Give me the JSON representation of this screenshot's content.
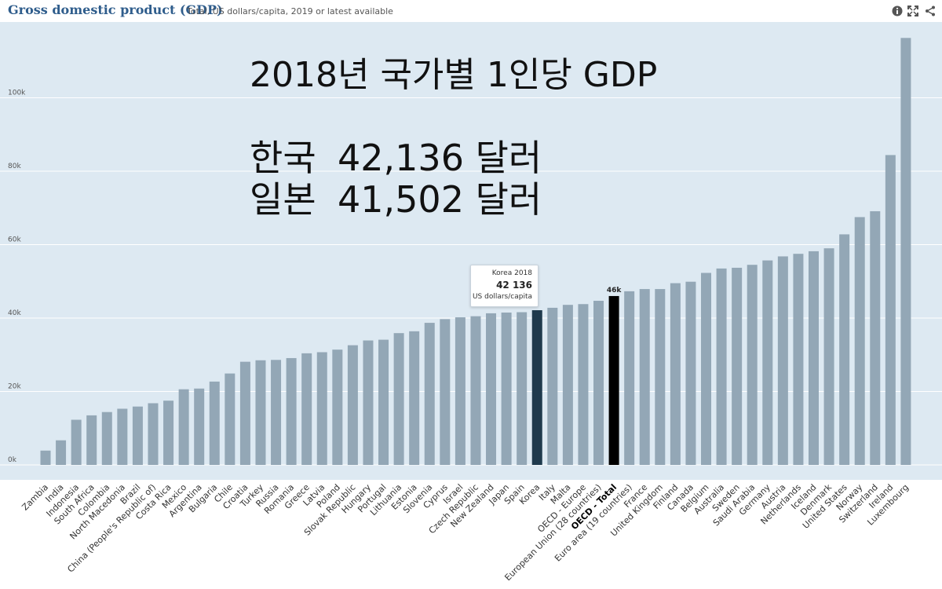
{
  "header": {
    "title": "Gross domestic product (GDP)",
    "subtitle": "Total, US dollars/capita, 2019 or latest available",
    "icons": [
      "info-icon",
      "fullscreen-icon",
      "share-icon"
    ]
  },
  "overlay": {
    "title": "2018년 국가별 1인당 GDP",
    "rows": [
      {
        "name": "한국",
        "value": "42,136 달러"
      },
      {
        "name": "일본",
        "value": "41,502 달러"
      }
    ]
  },
  "tooltip": {
    "line1": "Korea 2018",
    "value": "42 136",
    "unit": "US dollars/capita"
  },
  "colors": {
    "plot_background": "#dde9f2",
    "bar": "#93a7b6",
    "highlight_korea": "#1f3a4d",
    "highlight_oecd": "#000000",
    "title": "#2f5d8c"
  },
  "chart_data": {
    "type": "bar",
    "title": "Gross domestic product (GDP)",
    "subtitle": "Total, US dollars/capita, 2019 or latest available",
    "ylim": [
      0,
      120000
    ],
    "yticks": [
      0,
      20000,
      40000,
      60000,
      80000,
      100000
    ],
    "ytick_labels": [
      "0k",
      "20k",
      "40k",
      "60k",
      "80k",
      "100k"
    ],
    "grid": true,
    "highlighted": {
      "Korea": "#1f3a4d",
      "OECD - Total": "#000000"
    },
    "value_labels": {
      "OECD - Total": "46k"
    },
    "categories": [
      "Zambia",
      "India",
      "Indonesia",
      "South Africa",
      "Colombia",
      "North Macedonia",
      "Brazil",
      "China (People's Republic of)",
      "Costa Rica",
      "Mexico",
      "Argentina",
      "Bulgaria",
      "Chile",
      "Croatia",
      "Turkey",
      "Russia",
      "Romania",
      "Greece",
      "Latvia",
      "Poland",
      "Slovak Republic",
      "Hungary",
      "Portugal",
      "Lithuania",
      "Estonia",
      "Slovenia",
      "Cyprus",
      "Israel",
      "Czech Republic",
      "New Zealand",
      "Japan",
      "Spain",
      "Korea",
      "Italy",
      "Malta",
      "OECD - Europe",
      "European Union (28 countries)",
      "OECD - Total",
      "Euro area (19 countries)",
      "France",
      "United Kingdom",
      "Finland",
      "Canada",
      "Belgium",
      "Australia",
      "Sweden",
      "Saudi Arabia",
      "Germany",
      "Austria",
      "Netherlands",
      "Iceland",
      "Denmark",
      "United States",
      "Norway",
      "Switzerland",
      "Ireland",
      "Luxembourg"
    ],
    "values": [
      3900,
      6700,
      12300,
      13500,
      14400,
      15300,
      15900,
      16800,
      17500,
      20600,
      20800,
      22700,
      24900,
      28100,
      28500,
      28600,
      29100,
      30400,
      30700,
      31400,
      32600,
      33900,
      34100,
      35900,
      36400,
      38700,
      39700,
      40200,
      40500,
      41300,
      41502,
      41600,
      42136,
      42800,
      43600,
      43800,
      44700,
      46000,
      47300,
      47900,
      47900,
      49500,
      49900,
      52300,
      53500,
      53700,
      54500,
      55700,
      56800,
      57500,
      58200,
      59000,
      62800,
      67500,
      69100,
      84400,
      116300
    ]
  }
}
